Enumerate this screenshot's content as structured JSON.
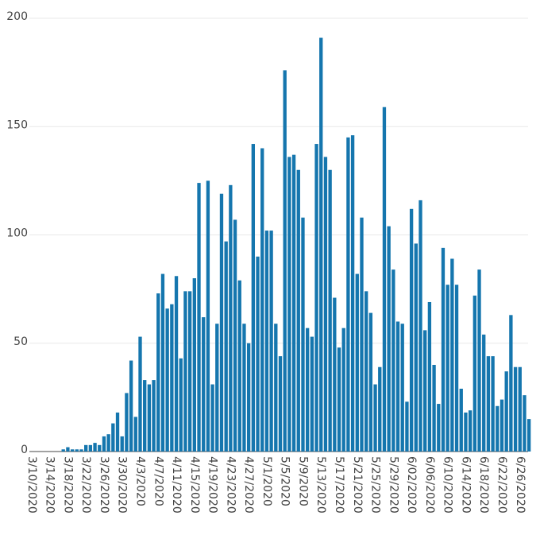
{
  "chart_data": {
    "type": "bar",
    "categories": [
      "3/10/2020",
      null,
      null,
      null,
      "3/14/2020",
      null,
      null,
      null,
      "3/18/2020",
      null,
      null,
      null,
      "3/22/2020",
      null,
      null,
      null,
      "3/26/2020",
      null,
      null,
      null,
      "3/30/2020",
      null,
      null,
      null,
      "4/3/2020",
      null,
      null,
      null,
      "4/7/2020",
      null,
      null,
      null,
      "4/11/2020",
      null,
      null,
      null,
      "4/15/2020",
      null,
      null,
      null,
      "4/19/2020",
      null,
      null,
      null,
      "4/23/2020",
      null,
      null,
      null,
      "4/27/2020",
      null,
      null,
      null,
      "5/1/2020",
      null,
      null,
      null,
      "5/5/2020",
      null,
      null,
      null,
      "5/9/2020",
      null,
      null,
      null,
      "5/13/2020",
      null,
      null,
      null,
      "5/17/2020",
      null,
      null,
      null,
      "5/21/2020",
      null,
      null,
      null,
      "5/25/2020",
      null,
      null,
      null,
      "5/29/2020",
      null,
      null,
      null,
      "6/02/2020",
      null,
      null,
      null,
      "6/06/2020",
      null,
      null,
      null,
      "6/10/2020",
      null,
      null,
      null,
      "6/14/2020",
      null,
      null,
      null,
      "6/18/2020",
      null,
      null,
      null,
      "6/22/2020",
      null,
      null,
      null,
      "6/26/2020",
      null,
      null
    ],
    "values": [
      0,
      0,
      0,
      0,
      0,
      0,
      0,
      1,
      2,
      1,
      1,
      1,
      3,
      3,
      4,
      3,
      7,
      8,
      13,
      18,
      7,
      27,
      42,
      16,
      53,
      33,
      31,
      33,
      73,
      82,
      66,
      68,
      81,
      43,
      74,
      74,
      80,
      124,
      62,
      125,
      31,
      59,
      119,
      97,
      123,
      107,
      79,
      59,
      50,
      142,
      90,
      140,
      102,
      102,
      59,
      44,
      176,
      136,
      137,
      130,
      108,
      57,
      53,
      142,
      191,
      136,
      130,
      71,
      48,
      57,
      145,
      146,
      82,
      108,
      74,
      64,
      31,
      39,
      159,
      104,
      84,
      60,
      59,
      23,
      112,
      96,
      116,
      56,
      69,
      40,
      22,
      94,
      77,
      89,
      77,
      29,
      18,
      19,
      72,
      84,
      54,
      44,
      44,
      21,
      24,
      37,
      63,
      39,
      39,
      26,
      15
    ],
    "color": "#1576ae",
    "ylim": [
      0,
      200
    ],
    "yticks": [
      0,
      50,
      100,
      150,
      200
    ],
    "grid": true
  }
}
